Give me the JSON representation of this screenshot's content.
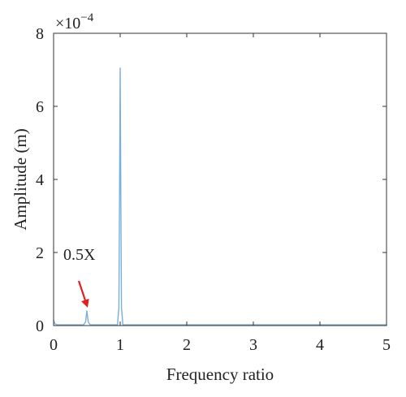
{
  "chart_data": {
    "type": "line",
    "xlabel": "Frequency ratio",
    "ylabel": "Amplitude (m)",
    "y_multiplier": "×10",
    "y_exponent": "−4",
    "xlim": [
      0,
      5
    ],
    "ylim": [
      0,
      8
    ],
    "x_ticks": [
      "0",
      "1",
      "2",
      "3",
      "4",
      "5"
    ],
    "y_ticks": [
      "0",
      "2",
      "4",
      "6",
      "8"
    ],
    "series_color": "#7aaedb",
    "annotation": {
      "text": "0.5X",
      "x": 0.5,
      "y": 0.4,
      "arrow_color": "#e02020"
    },
    "series": [
      {
        "x": [
          0,
          0.02,
          0.05,
          0.45,
          0.48,
          0.5,
          0.52,
          0.55,
          0.96,
          0.98,
          0.99,
          1.0,
          1.01,
          1.02,
          1.04,
          1.5,
          2.0,
          2.5,
          3.0,
          3.5,
          4.0,
          4.5,
          5.0
        ],
        "y": [
          0.15,
          0.05,
          0.02,
          0.02,
          0.1,
          0.4,
          0.1,
          0.02,
          0.02,
          0.5,
          3.5,
          7.05,
          3.5,
          0.5,
          0.02,
          0.02,
          0.02,
          0.02,
          0.02,
          0.02,
          0.02,
          0.02,
          0.02
        ]
      }
    ]
  }
}
